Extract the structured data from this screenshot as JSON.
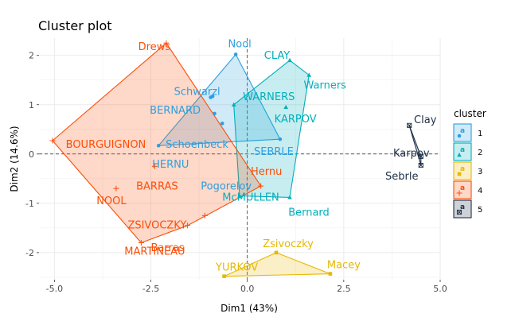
{
  "chart_data": {
    "type": "scatter",
    "title": "Cluster plot",
    "xlabel": "Dim1 (43%)",
    "ylabel": "Dim2 (14.6%)",
    "xlim": [
      -5.4,
      5.0
    ],
    "ylim": [
      -2.55,
      2.35
    ],
    "x_ticks": [
      -5.0,
      -2.5,
      0.0,
      2.5,
      5.0
    ],
    "x_tick_labels": [
      "-5.0",
      "-2.5",
      "0.0",
      "2.5",
      "5.0"
    ],
    "y_ticks": [
      -2,
      -1,
      0,
      1,
      2
    ],
    "y_tick_labels": [
      "-2",
      "-1",
      "0",
      "1",
      "2"
    ],
    "grid": true,
    "legend": {
      "title": "cluster",
      "position": "right",
      "entries": [
        "1",
        "2",
        "3",
        "4",
        "5"
      ]
    },
    "series": [
      {
        "name": "1",
        "color": "#2E9FDF",
        "marker": "circle",
        "points": [
          {
            "label": "Nool",
            "x": -0.3,
            "y": 2.02
          },
          {
            "label": "Schwarzl",
            "x": -0.95,
            "y": 1.15
          },
          {
            "label": "BERNARD",
            "x": -0.9,
            "y": 1.17
          },
          {
            "label": "Schoenbeck",
            "x": -0.85,
            "y": 0.82
          },
          {
            "label": "Pogorelov",
            "x": -0.65,
            "y": 0.62
          },
          {
            "label": "HERNU",
            "x": -2.3,
            "y": 0.17
          },
          {
            "label": "SEBRLE",
            "x": 0.85,
            "y": 0.3
          }
        ]
      },
      {
        "name": "2",
        "color": "#00AFBB",
        "marker": "triangle",
        "points": [
          {
            "label": "CLAY",
            "x": 1.1,
            "y": 1.9
          },
          {
            "label": "Warners",
            "x": 1.6,
            "y": 1.6
          },
          {
            "label": "WARNERS",
            "x": -0.35,
            "y": 1.0
          },
          {
            "label": "KARPOV",
            "x": 1.0,
            "y": 0.95
          },
          {
            "label": "McMULLEN",
            "x": -0.2,
            "y": -0.85
          },
          {
            "label": "Bernard",
            "x": 1.1,
            "y": -0.88
          }
        ]
      },
      {
        "name": "3",
        "color": "#E7B800",
        "marker": "square",
        "points": [
          {
            "label": "Zsivoczky",
            "x": 0.75,
            "y": -2.0
          },
          {
            "label": "YURKOV",
            "x": -0.6,
            "y": -2.48
          },
          {
            "label": "Macey",
            "x": 2.15,
            "y": -2.43
          }
        ]
      },
      {
        "name": "4",
        "color": "#FC4E07",
        "marker": "cross",
        "points": [
          {
            "label": "Drews",
            "x": -2.1,
            "y": 2.25
          },
          {
            "label": "BOURGUIGNON",
            "x": -5.05,
            "y": 0.27
          },
          {
            "label": "BARRAS",
            "x": -2.4,
            "y": -0.25
          },
          {
            "label": "NOOL",
            "x": -3.4,
            "y": -0.7
          },
          {
            "label": "Hernu",
            "x": 0.35,
            "y": -0.65
          },
          {
            "label": "ZSIVOCZKY",
            "x": -1.1,
            "y": -1.25
          },
          {
            "label": "Barras",
            "x": -1.55,
            "y": -1.45
          },
          {
            "label": "MARTINEAU",
            "x": -2.75,
            "y": -1.8
          }
        ]
      },
      {
        "name": "5",
        "color": "#1F3147",
        "marker": "square-x",
        "points": [
          {
            "label": "Clay",
            "x": 4.2,
            "y": 0.58
          },
          {
            "label": "Karpov",
            "x": 4.5,
            "y": -0.05
          },
          {
            "label": "Sebrle",
            "x": 4.5,
            "y": -0.23
          }
        ]
      }
    ],
    "hulls": [
      {
        "cluster": "1",
        "order": [
          "Nool",
          "SEBRLE",
          "HERNU"
        ]
      },
      {
        "cluster": "2",
        "order": [
          "CLAY",
          "Warners",
          "Bernard",
          "McMULLEN",
          "WARNERS"
        ]
      },
      {
        "cluster": "3",
        "order": [
          "Zsivoczky",
          "Macey",
          "YURKOV"
        ]
      },
      {
        "cluster": "4",
        "order": [
          "Drews",
          "Hernu",
          "Barras",
          "MARTINEAU",
          "BOURGUIGNON"
        ]
      },
      {
        "cluster": "5",
        "order": [
          "Clay",
          "Karpov",
          "Sebrle"
        ]
      }
    ]
  }
}
